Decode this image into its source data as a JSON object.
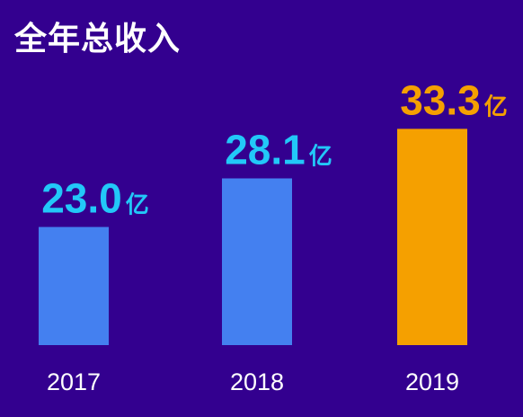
{
  "title": "全年总收入",
  "unit": "亿",
  "colors": {
    "background": "#33008f",
    "bar_default": "#4480f0",
    "bar_highlight": "#f5a000",
    "label_default": "#22c8f8",
    "label_highlight": "#f5a000",
    "tick_text": "#ffffff"
  },
  "chart_data": {
    "type": "bar",
    "title": "全年总收入",
    "categories": [
      "2017",
      "2018",
      "2019"
    ],
    "values": [
      23.0,
      28.1,
      33.3
    ],
    "value_labels": [
      "23.0",
      "28.1",
      "33.3"
    ],
    "unit": "亿",
    "highlight_index": 2,
    "xlabel": "",
    "ylabel": "",
    "grid": false,
    "legend": "none"
  }
}
